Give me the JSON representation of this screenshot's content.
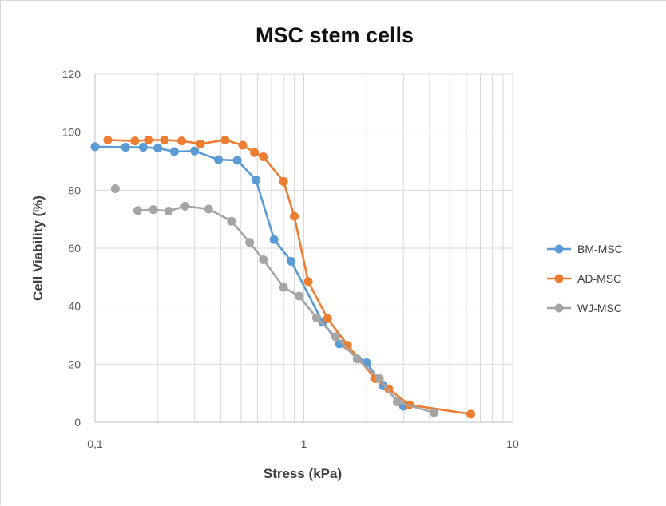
{
  "chart_data": {
    "type": "line",
    "title": "MSC stem cells",
    "xlabel": "Stress (kPa)",
    "ylabel": "Cell Viability (%)",
    "x_scale": "log",
    "xlim": [
      0.1,
      10
    ],
    "ylim": [
      0,
      120
    ],
    "x_ticks": [
      {
        "value": 0.1,
        "label": "0,1"
      },
      {
        "value": 1,
        "label": "1"
      },
      {
        "value": 10,
        "label": "10"
      }
    ],
    "y_ticks": [
      {
        "value": 0,
        "label": "0"
      },
      {
        "value": 20,
        "label": "20"
      },
      {
        "value": 40,
        "label": "40"
      },
      {
        "value": 60,
        "label": "60"
      },
      {
        "value": 80,
        "label": "80"
      },
      {
        "value": 100,
        "label": "100"
      },
      {
        "value": 120,
        "label": "120"
      }
    ],
    "grid": true,
    "legend_position": "right",
    "series": [
      {
        "name": "BM-MSC",
        "color": "#5b9bd5",
        "connect_from": 0,
        "points": [
          [
            0.1,
            95
          ],
          [
            0.14,
            94.8
          ],
          [
            0.17,
            94.8
          ],
          [
            0.2,
            94.5
          ],
          [
            0.24,
            93.3
          ],
          [
            0.3,
            93.5
          ],
          [
            0.39,
            90.5
          ],
          [
            0.48,
            90.3
          ],
          [
            0.59,
            83.5
          ],
          [
            0.72,
            63
          ],
          [
            0.87,
            55.5
          ],
          [
            1.23,
            34.5
          ],
          [
            1.48,
            27
          ],
          [
            2.0,
            20.5
          ],
          [
            2.4,
            12.5
          ],
          [
            3.0,
            5.5
          ]
        ]
      },
      {
        "name": "AD-MSC",
        "color": "#ed7d31",
        "connect_from": 0,
        "points": [
          [
            0.115,
            97.3
          ],
          [
            0.155,
            97
          ],
          [
            0.18,
            97.3
          ],
          [
            0.215,
            97.3
          ],
          [
            0.26,
            97
          ],
          [
            0.32,
            96
          ],
          [
            0.42,
            97.3
          ],
          [
            0.51,
            95.5
          ],
          [
            0.58,
            93
          ],
          [
            0.64,
            91.5
          ],
          [
            0.8,
            83
          ],
          [
            0.9,
            71
          ],
          [
            1.05,
            48.5
          ],
          [
            1.3,
            35.7
          ],
          [
            1.62,
            26.5
          ],
          [
            2.2,
            15
          ],
          [
            2.55,
            11.5
          ],
          [
            3.2,
            6
          ],
          [
            6.3,
            2.8
          ]
        ]
      },
      {
        "name": "WJ-MSC",
        "color": "#a5a5a5",
        "connect_from": 1,
        "points": [
          [
            0.125,
            80.5
          ],
          [
            0.16,
            73
          ],
          [
            0.19,
            73.3
          ],
          [
            0.225,
            72.8
          ],
          [
            0.27,
            74.5
          ],
          [
            0.35,
            73.5
          ],
          [
            0.45,
            69.3
          ],
          [
            0.55,
            62
          ],
          [
            0.64,
            56
          ],
          [
            0.8,
            46.5
          ],
          [
            0.95,
            43.5
          ],
          [
            1.15,
            36
          ],
          [
            1.42,
            29.5
          ],
          [
            1.8,
            21.8
          ],
          [
            2.3,
            15
          ],
          [
            2.8,
            7
          ],
          [
            4.2,
            3.3
          ]
        ]
      }
    ]
  }
}
